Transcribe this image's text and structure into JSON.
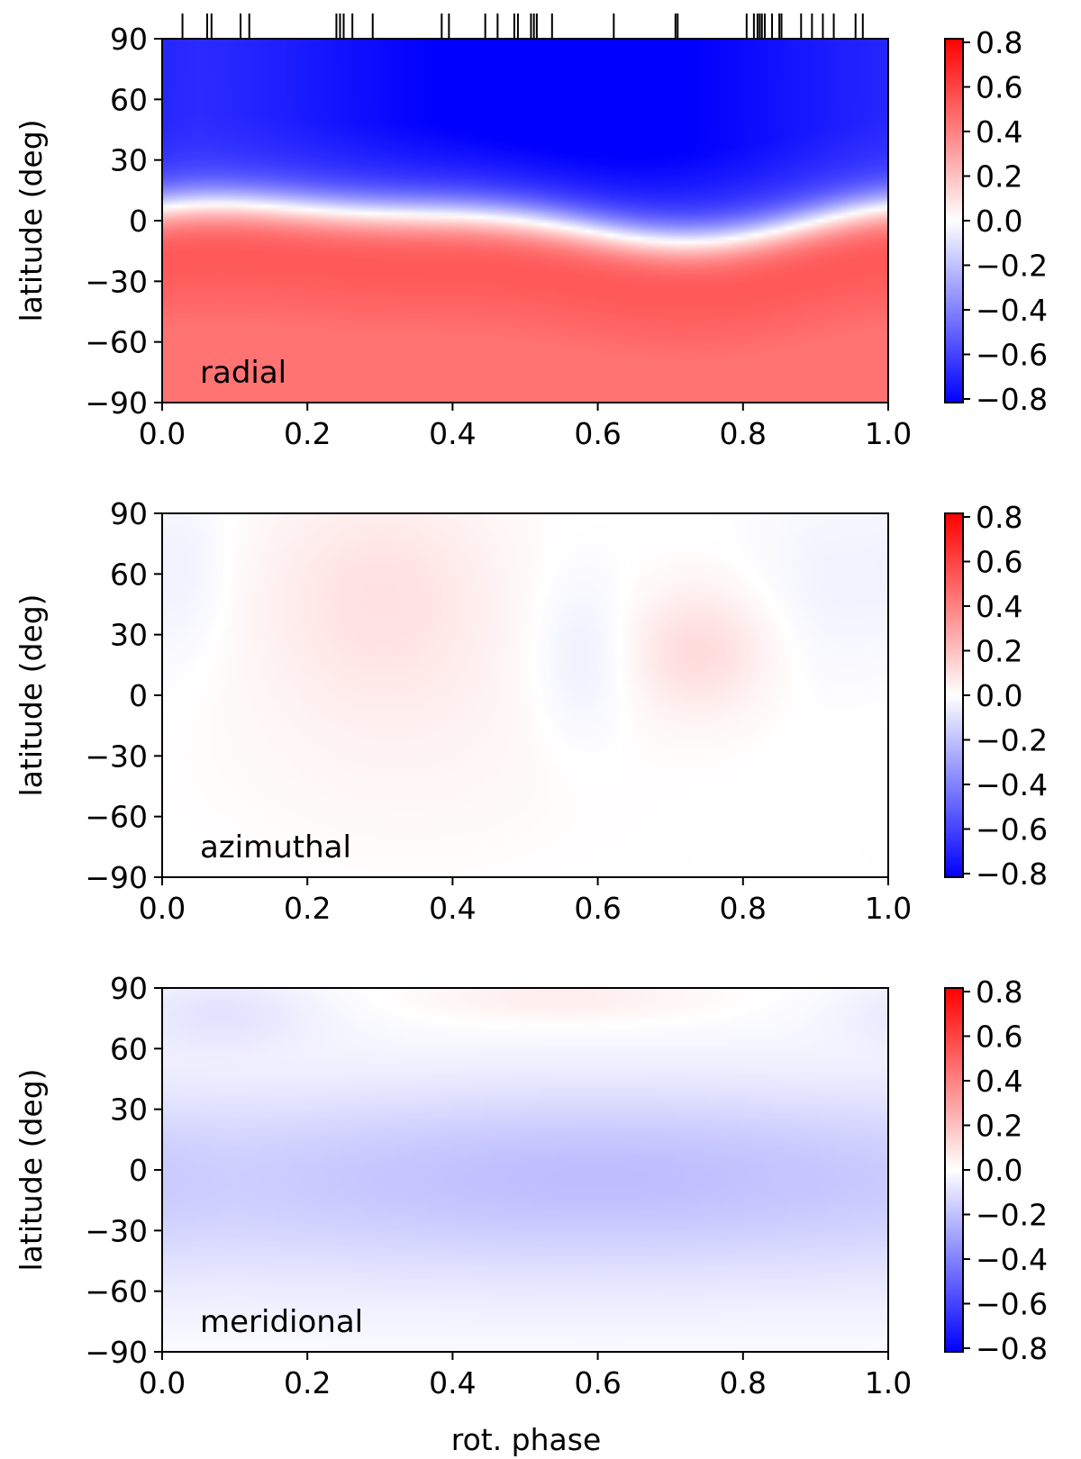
{
  "figure": {
    "xlabel": "rot. phase",
    "colormap": {
      "name": "bwr",
      "low": "#0000ff",
      "mid": "#ffffff",
      "high": "#ff0000"
    },
    "axis_color": "#000000"
  },
  "chart_data": [
    {
      "type": "heatmap",
      "label": "radial",
      "ylabel": "latitude (deg)",
      "xlim": [
        0.0,
        1.0
      ],
      "ylim": [
        -90,
        90
      ],
      "x_ticks": [
        "0.0",
        "0.2",
        "0.4",
        "0.6",
        "0.8",
        "1.0"
      ],
      "y_ticks": [
        "90",
        "60",
        "30",
        "0",
        "−30",
        "−60",
        "−90"
      ],
      "clim": [
        -0.8,
        0.8
      ],
      "colorbar_ticks": [
        "0.8",
        "0.6",
        "0.4",
        "0.2",
        "0.0",
        "−0.2",
        "−0.4",
        "−0.6",
        "−0.8"
      ],
      "field_model": "radial",
      "observation_phases": [
        0.028,
        0.062,
        0.068,
        0.108,
        0.12,
        0.24,
        0.245,
        0.25,
        0.262,
        0.29,
        0.385,
        0.395,
        0.445,
        0.462,
        0.485,
        0.49,
        0.508,
        0.512,
        0.516,
        0.537,
        0.622,
        0.707,
        0.71,
        0.805,
        0.815,
        0.82,
        0.823,
        0.826,
        0.83,
        0.84,
        0.85,
        0.853,
        0.88,
        0.895,
        0.91,
        0.925,
        0.955,
        0.965
      ]
    },
    {
      "type": "heatmap",
      "label": "azimuthal",
      "ylabel": "latitude (deg)",
      "xlim": [
        0.0,
        1.0
      ],
      "ylim": [
        -90,
        90
      ],
      "x_ticks": [
        "0.0",
        "0.2",
        "0.4",
        "0.6",
        "0.8",
        "1.0"
      ],
      "y_ticks": [
        "90",
        "60",
        "30",
        "0",
        "−30",
        "−60",
        "−90"
      ],
      "clim": [
        -0.8,
        0.8
      ],
      "colorbar_ticks": [
        "0.8",
        "0.6",
        "0.4",
        "0.2",
        "0.0",
        "−0.2",
        "−0.4",
        "−0.6",
        "−0.8"
      ],
      "field_model": "azimuthal"
    },
    {
      "type": "heatmap",
      "label": "meridional",
      "ylabel": "latitude (deg)",
      "xlabel": "rot. phase",
      "xlim": [
        0.0,
        1.0
      ],
      "ylim": [
        -90,
        90
      ],
      "x_ticks": [
        "0.0",
        "0.2",
        "0.4",
        "0.6",
        "0.8",
        "1.0"
      ],
      "y_ticks": [
        "90",
        "60",
        "30",
        "0",
        "−30",
        "−60",
        "−90"
      ],
      "clim": [
        -0.8,
        0.8
      ],
      "colorbar_ticks": [
        "0.8",
        "0.6",
        "0.4",
        "0.2",
        "0.0",
        "−0.2",
        "−0.4",
        "−0.6",
        "−0.8"
      ],
      "field_model": "meridional"
    }
  ]
}
